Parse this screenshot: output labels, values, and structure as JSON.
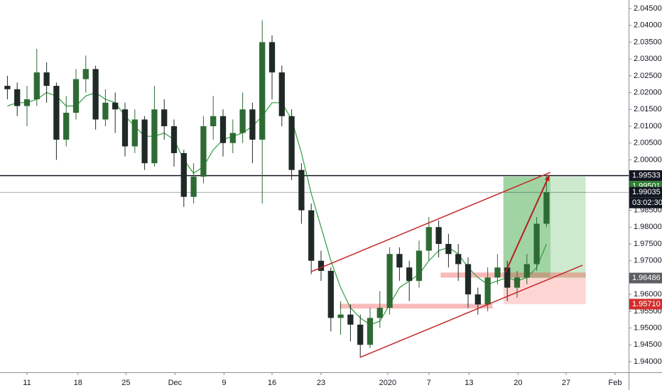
{
  "chart_data": {
    "type": "candlestick",
    "x": [
      -2,
      -1,
      0,
      1,
      2,
      3,
      4,
      5,
      6,
      7,
      8,
      9,
      10,
      11,
      12,
      13,
      14,
      15,
      16,
      17,
      18,
      19,
      20,
      21,
      22,
      23,
      24,
      25,
      26,
      27,
      28,
      29,
      30,
      31,
      32,
      33,
      34,
      35,
      36,
      37,
      38,
      39,
      40,
      41,
      42,
      43,
      44,
      45,
      46,
      47,
      48,
      49,
      50,
      51,
      52,
      53
    ],
    "open": [
      2.022,
      2.021,
      2.016,
      2.018,
      2.026,
      2.022,
      2.006,
      2.014,
      2.024,
      2.027,
      2.012,
      2.017,
      2.015,
      2.004,
      2.012,
      1.999,
      2.015,
      2.01,
      2.002,
      1.989,
      1.995,
      2.01,
      2.013,
      2.005,
      2.008,
      2.015,
      2.006,
      2.035,
      2.026,
      2.013,
      1.997,
      1.985,
      1.97,
      1.967,
      1.953,
      1.954,
      1.951,
      1.945,
      1.953,
      1.956,
      1.972,
      1.968,
      1.964,
      1.973,
      1.98,
      1.975,
      1.972,
      1.969,
      1.96,
      1.957,
      1.965,
      1.968,
      1.962,
      1.965,
      1.969,
      1.981
    ],
    "high": [
      2.025,
      2.023,
      2.022,
      2.033,
      2.029,
      2.023,
      2.019,
      2.027,
      2.031,
      2.028,
      2.021,
      2.02,
      2.017,
      2.015,
      2.013,
      2.022,
      2.018,
      2.012,
      2.003,
      1.999,
      2.013,
      2.019,
      2.015,
      2.012,
      2.02,
      2.017,
      2.0415,
      2.037,
      2.028,
      2.015,
      1.999,
      1.987,
      1.973,
      1.968,
      1.958,
      1.957,
      1.954,
      1.956,
      1.961,
      1.974,
      1.974,
      1.97,
      1.976,
      1.983,
      1.982,
      1.978,
      1.975,
      1.971,
      1.962,
      1.968,
      1.972,
      1.97,
      1.967,
      1.972,
      1.983,
      1.9955
    ],
    "low": [
      2.018,
      2.013,
      2.01,
      2.016,
      2.017,
      2.0,
      2.004,
      2.012,
      2.02,
      2.009,
      2.01,
      2.008,
      2.001,
      2.002,
      1.997,
      1.998,
      2.006,
      1.998,
      1.986,
      1.987,
      1.993,
      2.006,
      2.001,
      2.002,
      2.005,
      1.999,
      1.987,
      2.018,
      2.01,
      1.994,
      1.981,
      1.966,
      1.964,
      1.949,
      1.948,
      1.946,
      1.9415,
      1.944,
      1.95,
      1.954,
      1.964,
      1.958,
      1.962,
      1.97,
      1.971,
      1.968,
      1.964,
      1.956,
      1.954,
      1.955,
      1.963,
      1.958,
      1.959,
      1.963,
      1.967,
      1.98
    ],
    "close": [
      2.021,
      2.016,
      2.018,
      2.026,
      2.022,
      2.006,
      2.014,
      2.024,
      2.027,
      2.012,
      2.017,
      2.015,
      2.004,
      2.012,
      1.999,
      2.015,
      2.01,
      2.002,
      1.989,
      1.995,
      2.01,
      2.013,
      2.005,
      2.008,
      2.015,
      2.006,
      2.035,
      2.026,
      2.013,
      1.997,
      1.985,
      1.97,
      1.967,
      1.953,
      1.954,
      1.951,
      1.945,
      1.953,
      1.956,
      1.972,
      1.968,
      1.964,
      1.973,
      1.98,
      1.975,
      1.972,
      1.969,
      1.96,
      1.957,
      1.965,
      1.968,
      1.962,
      1.965,
      1.969,
      1.981,
      1.99035
    ],
    "up_color": "#2e6b34",
    "down_color": "#1f2a26",
    "ma": {
      "color": "#2e9e3e",
      "values": [
        2.016,
        2.017,
        2.017,
        2.018,
        2.02,
        2.019,
        2.016,
        2.016,
        2.019,
        2.02,
        2.018,
        2.017,
        2.013,
        2.01,
        2.007,
        2.007,
        2.008,
        2.006,
        2.0,
        1.996,
        1.998,
        2.003,
        2.006,
        2.007,
        2.008,
        2.01,
        2.013,
        2.017,
        2.017,
        2.012,
        2.002,
        1.99,
        1.98,
        1.97,
        1.962,
        1.956,
        1.953,
        1.951,
        1.952,
        1.957,
        1.962,
        1.964,
        1.966,
        1.97,
        1.973,
        1.974,
        1.972,
        1.968,
        1.965,
        1.963,
        1.964,
        1.965,
        1.964,
        1.965,
        1.968,
        1.975
      ]
    },
    "xlim": [
      -2.754,
      61.377
    ],
    "ylim": [
      1.93684,
      2.04753
    ],
    "grid": false,
    "xticks": [
      {
        "value": 0,
        "label": "11"
      },
      {
        "value": 5.2,
        "label": "18"
      },
      {
        "value": 10.1,
        "label": "25"
      },
      {
        "value": 15.1,
        "label": "Dec"
      },
      {
        "value": 20.1,
        "label": "9"
      },
      {
        "value": 25,
        "label": "16"
      },
      {
        "value": 30,
        "label": "23"
      },
      {
        "value": 36.8,
        "label": "2020"
      },
      {
        "value": 41,
        "label": "7"
      },
      {
        "value": 45.1,
        "label": "13"
      },
      {
        "value": 50.1,
        "label": "20"
      },
      {
        "value": 55,
        "label": "27"
      },
      {
        "value": 60,
        "label": "Feb"
      }
    ],
    "yticks": [
      {
        "value": 2.045,
        "label": "2.04500"
      },
      {
        "value": 2.04,
        "label": "2.04000"
      },
      {
        "value": 2.035,
        "label": "2.03500"
      },
      {
        "value": 2.03,
        "label": "2.03000"
      },
      {
        "value": 2.025,
        "label": "2.02500"
      },
      {
        "value": 2.02,
        "label": "2.02000"
      },
      {
        "value": 2.015,
        "label": "2.01500"
      },
      {
        "value": 2.01,
        "label": "2.01000"
      },
      {
        "value": 2.005,
        "label": "2.00500"
      },
      {
        "value": 2.0,
        "label": "2.00000"
      },
      {
        "value": 1.985,
        "label": "1.98500"
      },
      {
        "value": 1.98,
        "label": "1.98000"
      },
      {
        "value": 1.975,
        "label": "1.97500"
      },
      {
        "value": 1.97,
        "label": "1.97000"
      },
      {
        "value": 1.96,
        "label": "1.96000"
      },
      {
        "value": 1.955,
        "label": "1.95500"
      },
      {
        "value": 1.95,
        "label": "1.95000"
      },
      {
        "value": 1.945,
        "label": "1.94500"
      },
      {
        "value": 1.94,
        "label": "1.94000"
      }
    ],
    "zones": [
      {
        "x": [
          48.6,
          57.0
        ],
        "y": [
          1.96486,
          1.99501
        ],
        "color": "rgba(76,175,80,0.28)"
      },
      {
        "x": [
          48.6,
          53.4
        ],
        "y": [
          1.96486,
          1.99501
        ],
        "color": "rgba(76,175,80,0.35)"
      },
      {
        "x": [
          48.6,
          57.0
        ],
        "y": [
          1.9571,
          1.96486
        ],
        "color": "rgba(244,67,54,0.22)"
      },
      {
        "x": [
          31.9,
          47.5
        ],
        "y": [
          1.9558,
          1.9572
        ],
        "color": "rgba(239,83,80,0.4)"
      },
      {
        "x": [
          42.2,
          57.0
        ],
        "y": [
          1.965,
          1.9665
        ],
        "color": "rgba(239,83,80,0.4)"
      }
    ],
    "trendlines": [
      {
        "x": [
          29,
          53.4
        ],
        "y": [
          1.96676,
          1.99629
        ],
        "color": "#c62828"
      },
      {
        "x": [
          33.96,
          56.67
        ],
        "y": [
          1.94125,
          1.96866
        ],
        "color": "#c62828"
      },
      {
        "x": [
          48.8,
          53.3
        ],
        "y": [
          1.9665,
          1.9955
        ],
        "color": "#b71c1c"
      }
    ],
    "levels": [
      {
        "value": 1.99533,
        "label": "1.99533",
        "color": "#131722",
        "line": true
      },
      {
        "value": 1.99501,
        "label": "1.99501",
        "color": "#2e7d32",
        "line": false
      },
      {
        "value": 1.99035,
        "label": "1.99035",
        "color": "#131722",
        "line": true
      },
      {
        "value": 1.96486,
        "label": "1.96486",
        "color": "#5d6063",
        "line": false
      },
      {
        "value": 1.9571,
        "label": "1.95710",
        "color": "#d32f2f",
        "line": false
      }
    ],
    "countdown": "03:02:30"
  }
}
